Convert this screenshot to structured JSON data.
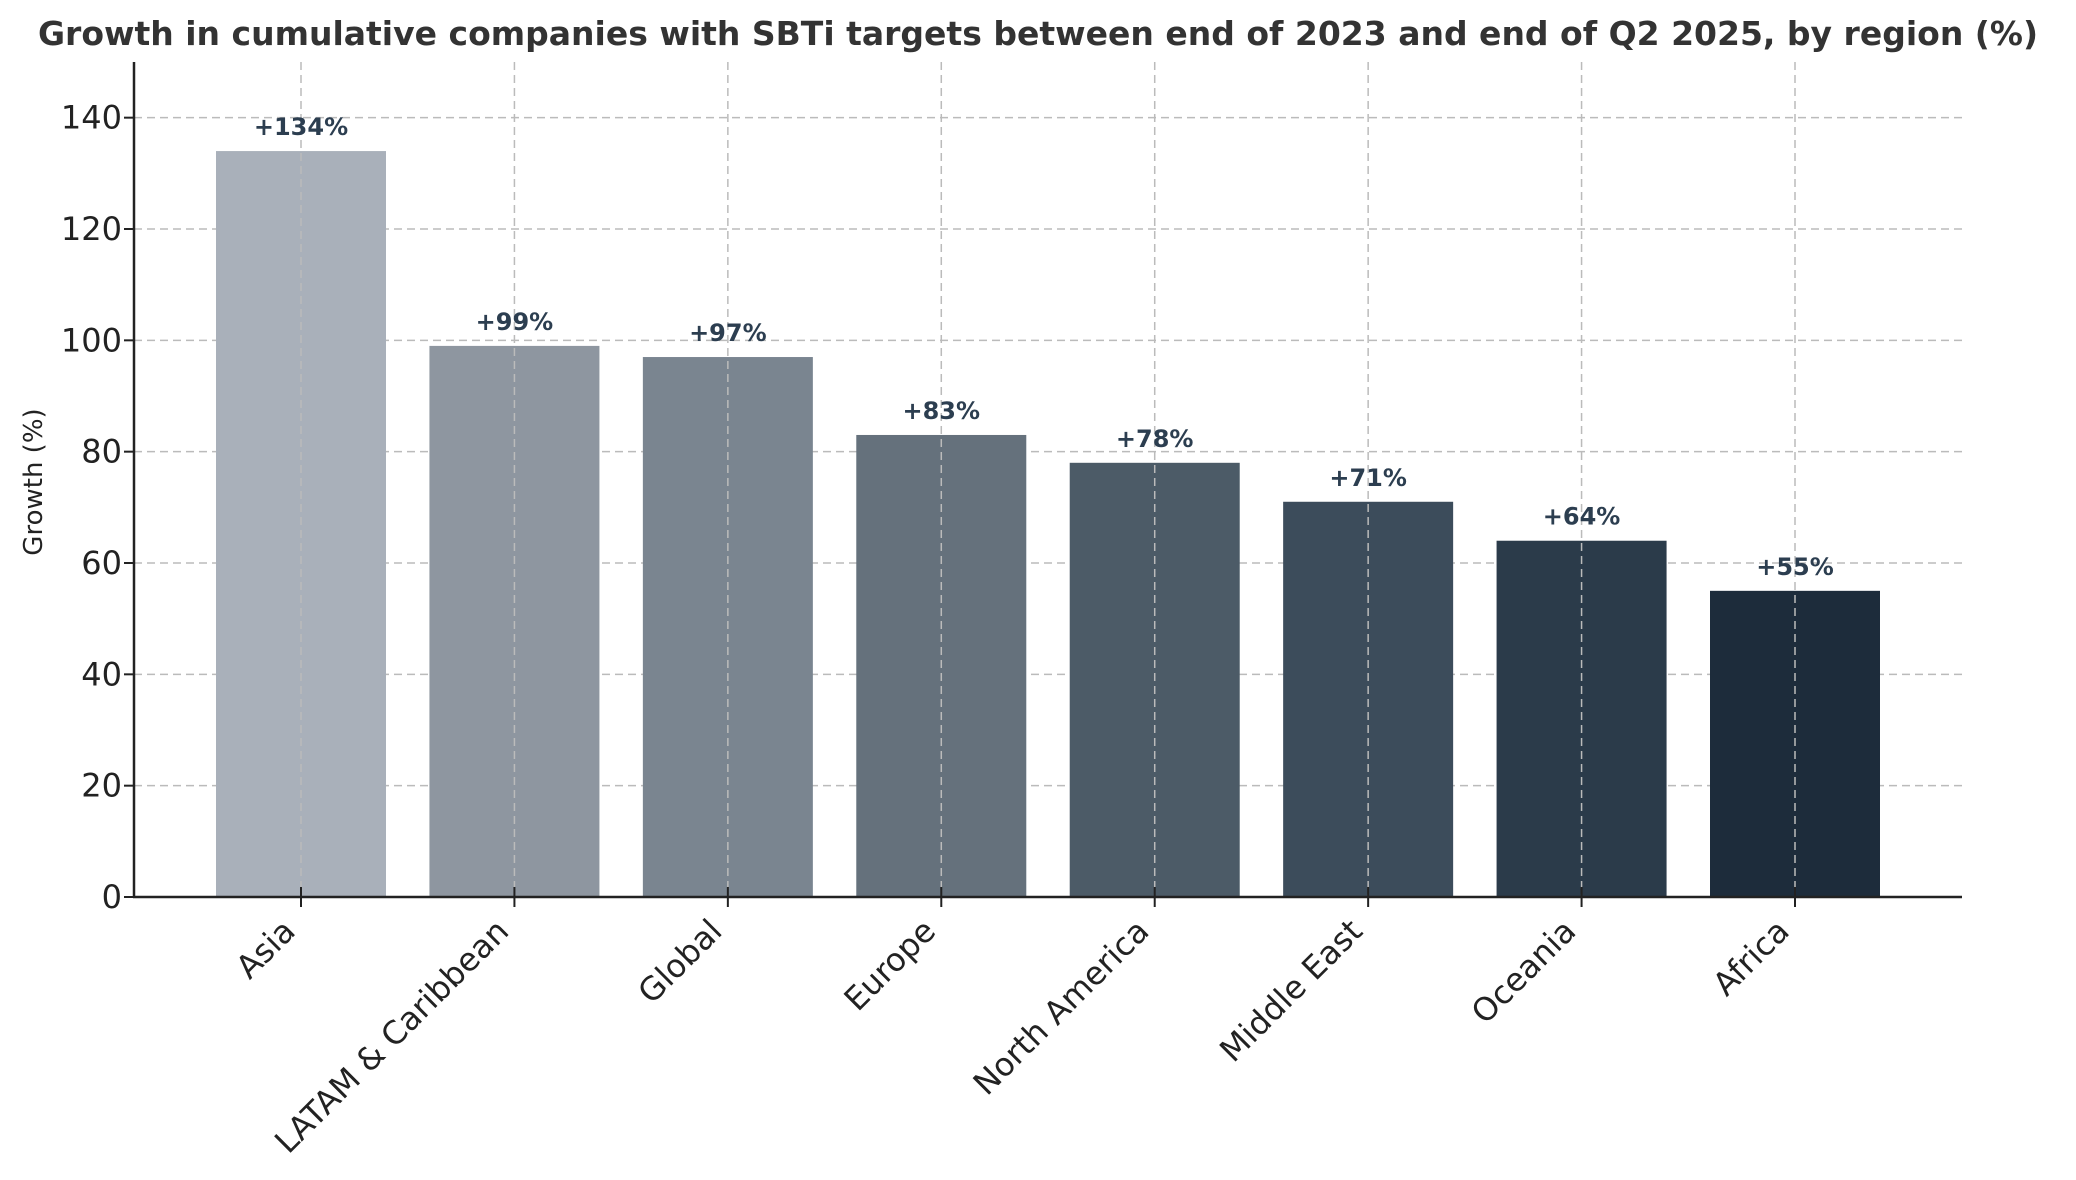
{
  "chart_data": {
    "type": "bar",
    "title": "Growth in cumulative companies with SBTi targets between end of 2023 and end of Q2 2025, by region (%)",
    "xlabel": "",
    "ylabel": "Growth (%)",
    "ylim": [
      0,
      150
    ],
    "yticks": [
      0,
      20,
      40,
      60,
      80,
      100,
      120,
      140
    ],
    "grid": true,
    "categories": [
      "Asia",
      "LATAM & Caribbean",
      "Global",
      "Europe",
      "North America",
      "Middle East",
      "Oceania",
      "Africa"
    ],
    "values": [
      134,
      99,
      97,
      83,
      78,
      71,
      64,
      55
    ],
    "data_labels": [
      "+134%",
      "+99%",
      "+97%",
      "+83%",
      "+78%",
      "+71%",
      "+64%",
      "+55%"
    ],
    "colors": [
      "#a9b0ba",
      "#8e96a0",
      "#7a8590",
      "#65717c",
      "#4c5b67",
      "#3c4c5b",
      "#2b3b4a",
      "#1d2c3b"
    ]
  }
}
